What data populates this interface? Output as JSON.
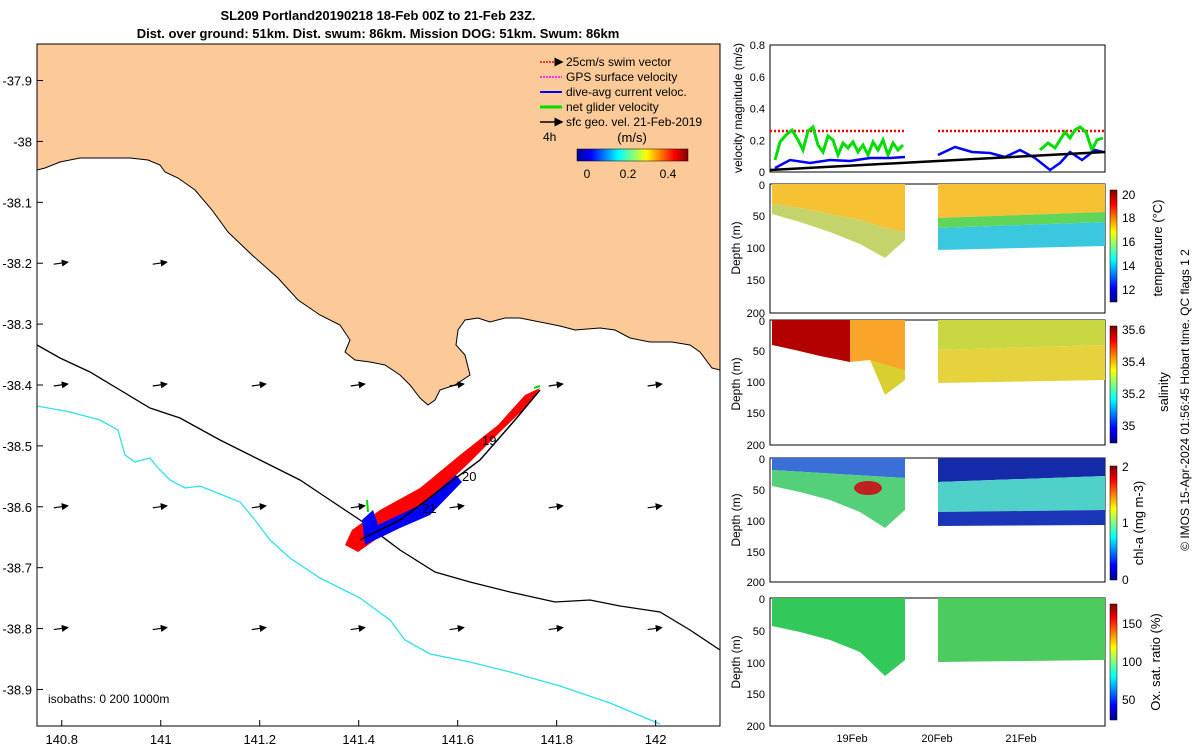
{
  "title": {
    "line1": "SL209 Portland20190218 18-Feb 00Z to 21-Feb 23Z.",
    "line2": "Dist. over ground: 51km. Dist. swum: 86km. Mission DOG: 51km. Swum: 86km"
  },
  "colors": {
    "land": "#fcc998",
    "isobath200": "#000000",
    "isobath1000": "#2ee0e8",
    "swim": "#ff0000",
    "gps": "#ff00ff",
    "diveavg": "#0000ff",
    "net": "#00dd00",
    "sfcgeo": "#000000"
  },
  "map": {
    "lon_ticks": [
      "140.8",
      "141",
      "141.2",
      "141.4",
      "141.6",
      "141.8",
      "142"
    ],
    "lat_ticks": [
      "-37.9",
      "-38",
      "-38.1",
      "-38.2",
      "-38.3",
      "-38.4",
      "-38.5",
      "-38.6",
      "-38.7",
      "-38.8",
      "-38.9"
    ],
    "xlim": [
      140.75,
      142.13
    ],
    "ylim": [
      -38.96,
      -37.84
    ],
    "legend": [
      {
        "label": "25cm/s swim vector",
        "icon": "arrow-red-dotted"
      },
      {
        "label": "GPS surface velocity",
        "icon": "arrow-magenta-dotted"
      },
      {
        "label": "dive-avg current veloc.",
        "icon": "arrow-blue"
      },
      {
        "label": "net glider velocity",
        "icon": "arrow-green"
      },
      {
        "label": "sfc geo. vel. 21-Feb-2019",
        "icon": "arrow-black"
      }
    ],
    "colorbar": {
      "label": "(m/s)",
      "prefix": "4h",
      "ticks": [
        "0",
        "0.2",
        "0.4"
      ]
    },
    "isobath_label": "isobaths: 0   200  1000m",
    "day_labels": [
      {
        "text": "19",
        "lon": 141.62,
        "lat": -38.496
      },
      {
        "text": "20",
        "lon": 141.595,
        "lat": -38.562
      },
      {
        "text": "21",
        "lon": 141.54,
        "lat": -38.603
      }
    ]
  },
  "panels": {
    "x_ticks": [
      "19Feb",
      "20Feb",
      "21Feb"
    ],
    "velocity": {
      "ylabel": "velocity magnitude (m/s)",
      "yticks": [
        "0",
        "0.2",
        "0.4",
        "0.6",
        "0.8"
      ]
    },
    "temperature": {
      "cbar_label": "temperature (°C)",
      "ylabel": "Depth (m)",
      "yticks": [
        "0",
        "50",
        "100",
        "150",
        "200"
      ],
      "cticks": [
        "12",
        "14",
        "16",
        "18",
        "20"
      ]
    },
    "salinity": {
      "cbar_label": "salinity",
      "ylabel": "Depth (m)",
      "yticks": [
        "0",
        "50",
        "100",
        "150",
        "200"
      ],
      "cticks": [
        "35",
        "35.2",
        "35.4",
        "35.6"
      ]
    },
    "chla": {
      "cbar_label": "chl-a (mg m-3)",
      "ylabel": "Depth (m)",
      "yticks": [
        "0",
        "50",
        "100",
        "150",
        "200"
      ],
      "cticks": [
        "0",
        "1",
        "2"
      ]
    },
    "oxygen": {
      "cbar_label": "Ox. sat. ratio (%)",
      "ylabel": "Depth (m)",
      "yticks": [
        "0",
        "50",
        "100",
        "150",
        "200"
      ],
      "cticks": [
        "50",
        "100",
        "150"
      ]
    }
  },
  "side_note": "© IMOS 15-Apr-2024 01:56:45 Hobart time. QC flags 1  2",
  "chart_data": [
    {
      "type": "scatter",
      "title": "SL209 Portland20190218 18-Feb 00Z to 21-Feb 23Z.",
      "xlim": [
        140.75,
        142.13
      ],
      "ylim": [
        -38.96,
        -37.84
      ],
      "track": {
        "lon": [
          141.39,
          141.43,
          141.47,
          141.52,
          141.56,
          141.6,
          141.64,
          141.68,
          141.72,
          141.755
        ],
        "lat": [
          -38.655,
          -38.62,
          -38.595,
          -38.57,
          -38.545,
          -38.52,
          -38.495,
          -38.47,
          -38.44,
          -38.41
        ]
      },
      "current_grid": {
        "lon": [
          140.8,
          141.0,
          141.2,
          141.4,
          141.6,
          141.8,
          142.0
        ],
        "lat": [
          -38.2,
          -38.4,
          -38.6,
          -38.8
        ]
      }
    },
    {
      "type": "line",
      "ylabel": "velocity magnitude (m/s)",
      "ylim": [
        0,
        0.8
      ],
      "x_days": [
        18.0,
        21.96
      ],
      "series": [
        {
          "name": "25cm/s swim vector",
          "color": "#ff0000",
          "segments": [
            [
              18.0,
              19.6,
              0.25
            ],
            [
              20.05,
              21.96,
              0.25
            ]
          ]
        },
        {
          "name": "net glider velocity",
          "color": "#00dd00",
          "range": [
            0.05,
            0.28
          ]
        },
        {
          "name": "dive-avg current veloc.",
          "color": "#0000ff",
          "range": [
            0.0,
            0.14
          ]
        },
        {
          "name": "sfc geo. vel. 21-Feb-2019",
          "color": "#000000",
          "start": 0.01,
          "end": 0.12
        }
      ]
    }
  ]
}
